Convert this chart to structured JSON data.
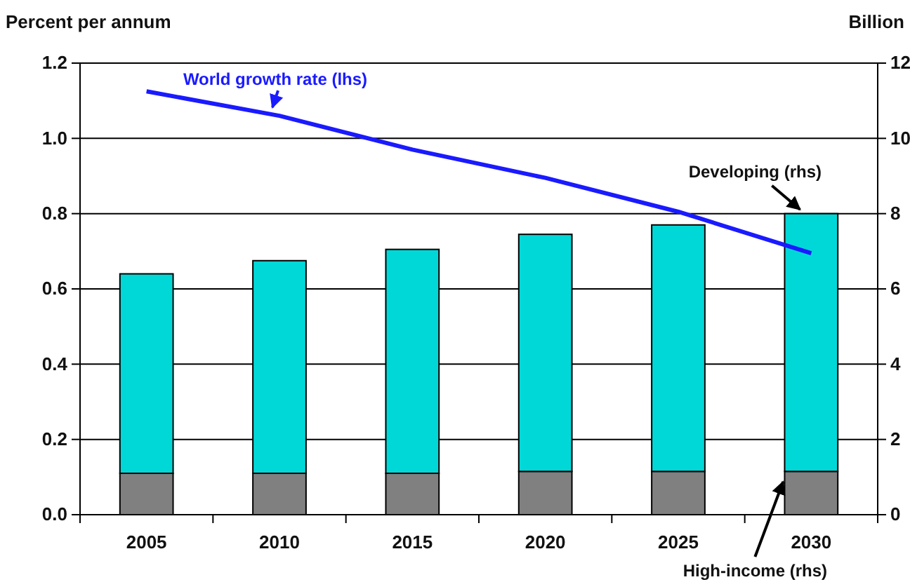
{
  "chart_data": {
    "type": "bar",
    "stacked": true,
    "categories": [
      "2005",
      "2010",
      "2015",
      "2020",
      "2025",
      "2030"
    ],
    "ylabel": "Percent per annum",
    "y2label": "Billion",
    "ylim": [
      0,
      1.2
    ],
    "yticks": [
      {
        "value": 0,
        "label": "0.0"
      },
      {
        "value": 0.2,
        "label": "0.2"
      },
      {
        "value": 0.4,
        "label": "0.4"
      },
      {
        "value": 0.6,
        "label": "0.6"
      },
      {
        "value": 0.8,
        "label": "0.8"
      },
      {
        "value": 1,
        "label": "1.0"
      },
      {
        "value": 1.2,
        "label": "1.2"
      }
    ],
    "y2lim": [
      0,
      12
    ],
    "y2ticks": [
      0,
      2,
      4,
      6,
      8,
      10,
      12
    ],
    "grid": "y",
    "legend": false,
    "series": [
      {
        "name": "High-income (rhs)",
        "axis": "y2",
        "color": "#808080",
        "values": [
          1.1,
          1.1,
          1.1,
          1.15,
          1.15,
          1.15
        ]
      },
      {
        "name": "Developing (rhs)",
        "axis": "y2",
        "color": "#00d8d8",
        "values": [
          5.3,
          5.65,
          5.95,
          6.3,
          6.55,
          6.85
        ]
      },
      {
        "name": "World growth rate (lhs)",
        "type": "line",
        "axis": "y",
        "color": "#1a1aff",
        "values": [
          1.125,
          1.06,
          0.97,
          0.895,
          0.805,
          0.695
        ]
      }
    ]
  }
}
